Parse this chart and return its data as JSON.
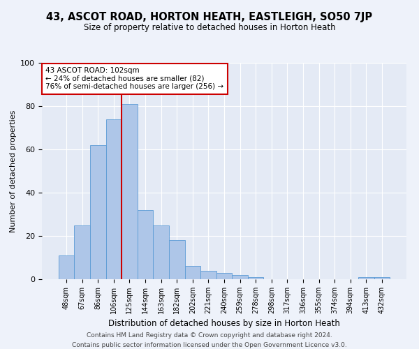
{
  "title": "43, ASCOT ROAD, HORTON HEATH, EASTLEIGH, SO50 7JP",
  "subtitle": "Size of property relative to detached houses in Horton Heath",
  "xlabel": "Distribution of detached houses by size in Horton Heath",
  "ylabel": "Number of detached properties",
  "bar_labels": [
    "48sqm",
    "67sqm",
    "86sqm",
    "106sqm",
    "125sqm",
    "144sqm",
    "163sqm",
    "182sqm",
    "202sqm",
    "221sqm",
    "240sqm",
    "259sqm",
    "278sqm",
    "298sqm",
    "317sqm",
    "336sqm",
    "355sqm",
    "374sqm",
    "394sqm",
    "413sqm",
    "432sqm"
  ],
  "bar_values": [
    11,
    25,
    62,
    74,
    81,
    32,
    25,
    18,
    6,
    4,
    3,
    2,
    1,
    0,
    0,
    0,
    0,
    0,
    0,
    1,
    1
  ],
  "bar_color": "#aec6e8",
  "bar_edge_color": "#5b9bd5",
  "property_line_x": 3.5,
  "annotation_line1": "43 ASCOT ROAD: 102sqm",
  "annotation_line2": "← 24% of detached houses are smaller (82)",
  "annotation_line3": "76% of semi-detached houses are larger (256) →",
  "annotation_box_color": "#ffffff",
  "annotation_border_color": "#cc0000",
  "line_color": "#cc0000",
  "footer1": "Contains HM Land Registry data © Crown copyright and database right 2024.",
  "footer2": "Contains public sector information licensed under the Open Government Licence v3.0.",
  "ylim": [
    0,
    100
  ],
  "background_color": "#eef2fa",
  "plot_bg_color": "#e4eaf5"
}
